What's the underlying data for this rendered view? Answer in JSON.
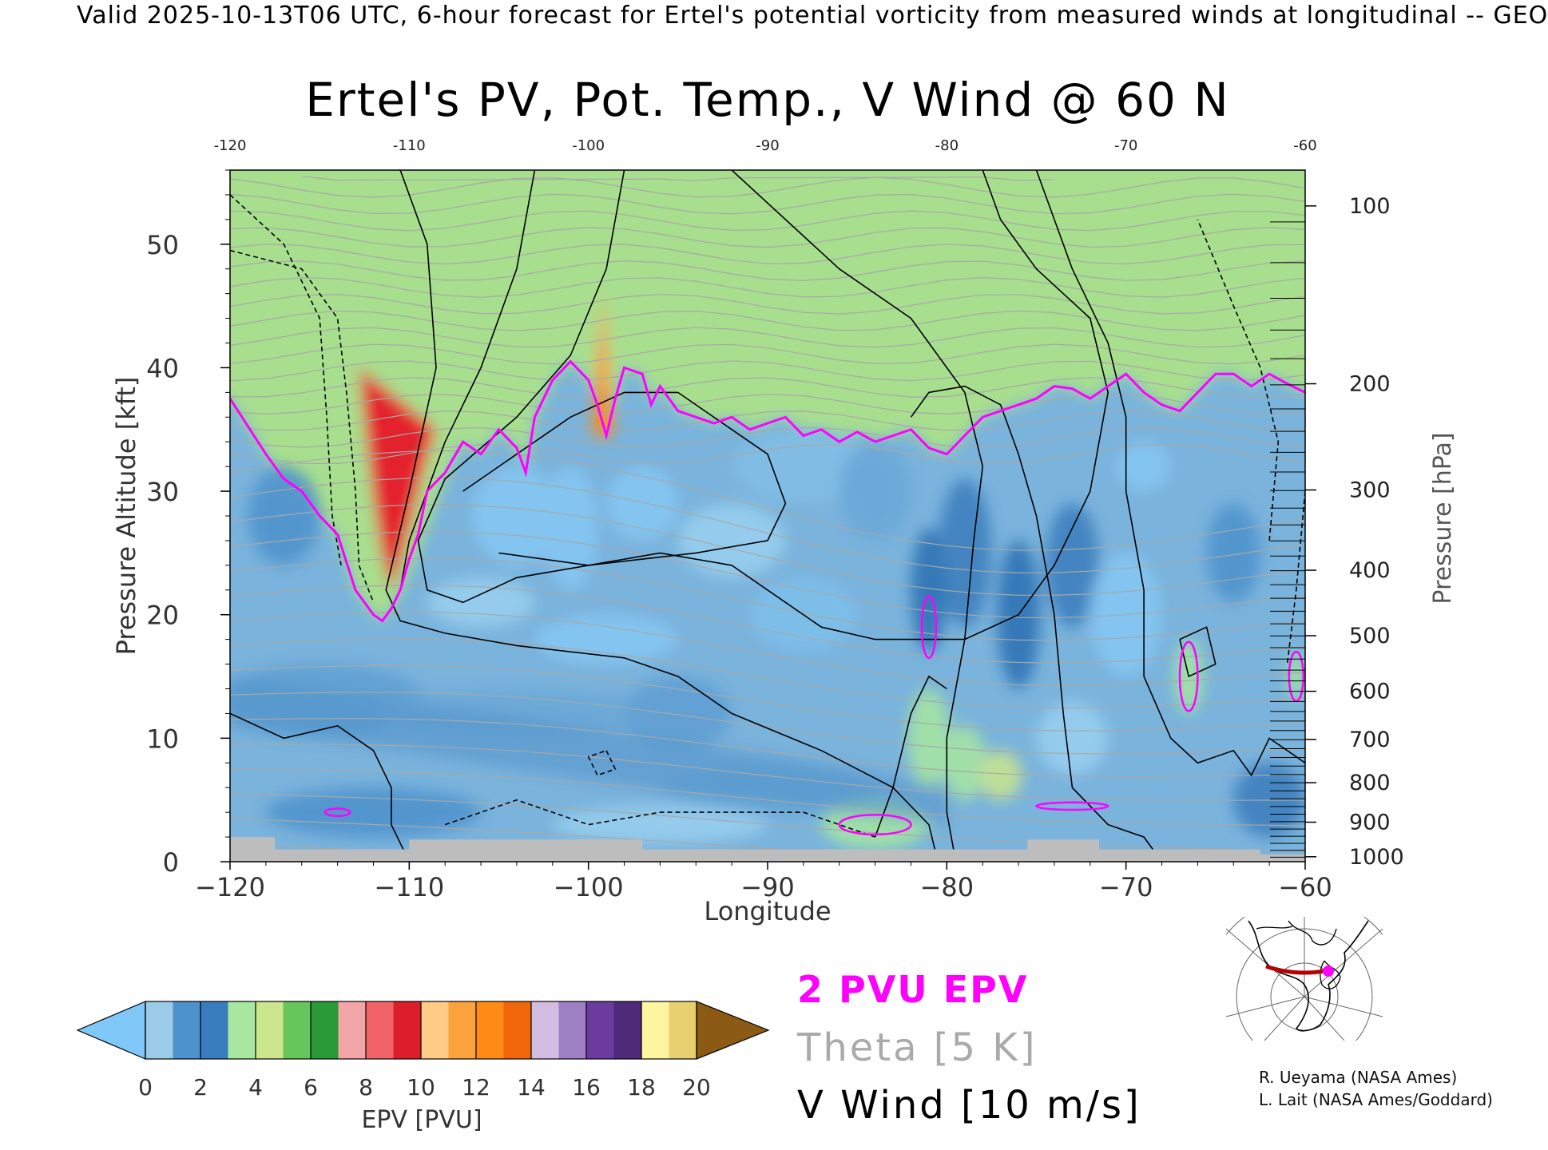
{
  "header": {
    "valid_line": "Valid 2025-10-13T06 UTC, 6-hour forecast for Ertel's potential vorticity from measured winds at longitudinal -- GEO"
  },
  "chart_data": {
    "type": "heatmap",
    "title": "Ertel's PV, Pot. Temp., V Wind @ 60 N",
    "xlabel": "Longitude",
    "ylabel_left": "Pressure Altitude [kft]",
    "ylabel_right": "Pressure [hPa]",
    "xlim": [
      -120,
      -60
    ],
    "ylim": [
      0,
      56
    ],
    "x_ticks": [
      -120,
      -110,
      -100,
      -90,
      -80,
      -70,
      -60
    ],
    "x_tick_labels": [
      "−120",
      "−110",
      "−100",
      "−90",
      "−80",
      "−70",
      "−60"
    ],
    "x_top_tick_labels": [
      "-120",
      "-110",
      "-100",
      "-90",
      "-80",
      "-70",
      "-60"
    ],
    "y_ticks": [
      0,
      10,
      20,
      30,
      40,
      50
    ],
    "y_tick_labels": [
      "0",
      "10",
      "20",
      "30",
      "40",
      "50"
    ],
    "pressure_ticks": [
      {
        "hPa": 100,
        "kft": 53.1,
        "label": "100"
      },
      {
        "hPa": 200,
        "kft": 38.7,
        "label": "200"
      },
      {
        "hPa": 300,
        "kft": 30.1,
        "label": "300"
      },
      {
        "hPa": 400,
        "kft": 23.6,
        "label": "400"
      },
      {
        "hPa": 500,
        "kft": 18.3,
        "label": "500"
      },
      {
        "hPa": 600,
        "kft": 13.8,
        "label": "600"
      },
      {
        "hPa": 700,
        "kft": 9.9,
        "label": "700"
      },
      {
        "hPa": 800,
        "kft": 6.4,
        "label": "800"
      },
      {
        "hPa": 900,
        "kft": 3.2,
        "label": "900"
      },
      {
        "hPa": 1000,
        "kft": 0.4,
        "label": "1000"
      }
    ],
    "layers": [
      {
        "name": "2 PVU EPV",
        "units": "PVU",
        "color": "#ff00ff"
      },
      {
        "name": "Theta [5 K]",
        "units": "K",
        "color": "#aaaaaa"
      },
      {
        "name": "V Wind [10 m/s]",
        "units": "m/s",
        "color": "#000000"
      }
    ],
    "epv_2pvu_contour": {
      "x": [
        -120,
        -118,
        -117,
        -116,
        -115,
        -114,
        -113,
        -112,
        -111.5,
        -111,
        -110.5,
        -110,
        -109.5,
        -109,
        -108,
        -107,
        -106,
        -105,
        -104,
        -103.5,
        -103,
        -102,
        -101,
        -100,
        -99.5,
        -99,
        -98.5,
        -98,
        -97,
        -96.5,
        -96,
        -95,
        -94,
        -93,
        -92,
        -91,
        -90,
        -89,
        -88,
        -87,
        -86,
        -85,
        -84,
        -83,
        -82,
        -81,
        -80,
        -79,
        -78,
        -77,
        -76,
        -75,
        -74,
        -73,
        -72,
        -71,
        -70,
        -69,
        -68,
        -67,
        -66,
        -65,
        -64,
        -63,
        -62,
        -61,
        -60
      ],
      "kft": [
        37.5,
        33,
        31,
        30,
        28,
        26.5,
        22,
        20,
        19.5,
        20.5,
        22,
        24.5,
        26.5,
        30,
        31.5,
        34,
        33,
        35,
        33.5,
        31.5,
        36,
        39,
        40.5,
        39,
        37,
        34.5,
        37.5,
        40,
        39.5,
        37,
        38.5,
        36.5,
        36,
        35.5,
        36,
        35,
        35.5,
        36,
        34.5,
        35,
        34,
        34.8,
        34,
        34.5,
        35,
        33.5,
        33,
        34.5,
        36,
        36.5,
        37,
        37.5,
        38.5,
        38.3,
        37.5,
        38.5,
        39.5,
        38,
        37,
        36.5,
        38,
        39.5,
        39.5,
        38.5,
        39.5,
        38.7,
        38
      ]
    },
    "epv_colorbar": {
      "label": "EPV [PVU]",
      "levels": [
        0,
        2,
        4,
        6,
        8,
        10,
        12,
        14,
        16,
        18,
        20
      ],
      "tick_labels": [
        "0",
        "2",
        "4",
        "6",
        "8",
        "10",
        "12",
        "14",
        "16",
        "18",
        "20"
      ],
      "under_color": "#7fc8f8",
      "over_color": "#8b5a14",
      "colors": [
        "#9ccbe8",
        "#4d92cc",
        "#3a7dbd",
        "#a7e7a0",
        "#cbe68c",
        "#66c55b",
        "#2a9a38",
        "#f3a6a8",
        "#f16369",
        "#dc1e2a",
        "#ffcc88",
        "#fba23c",
        "#fe8c14",
        "#f0660a",
        "#d2bce2",
        "#9d7fc4",
        "#6c3ba0",
        "#4f2a7a",
        "#fff4a0",
        "#e8d070"
      ]
    }
  },
  "legend": {
    "pv_label": "2 PVU EPV",
    "theta_label": "Theta [5 K]",
    "wind_label": "V Wind [10 m/s]",
    "pv_color": "#ff00ff",
    "theta_color": "#aaaaaa",
    "wind_color": "#000000"
  },
  "inset_map": {
    "description_icon": "globe-map-icon",
    "track_color": "#b40000",
    "marker_color": "#ff00ff"
  },
  "credits": {
    "line1": "R. Ueyama (NASA Ames)",
    "line2": "L. Lait (NASA Ames/Goddard)"
  }
}
